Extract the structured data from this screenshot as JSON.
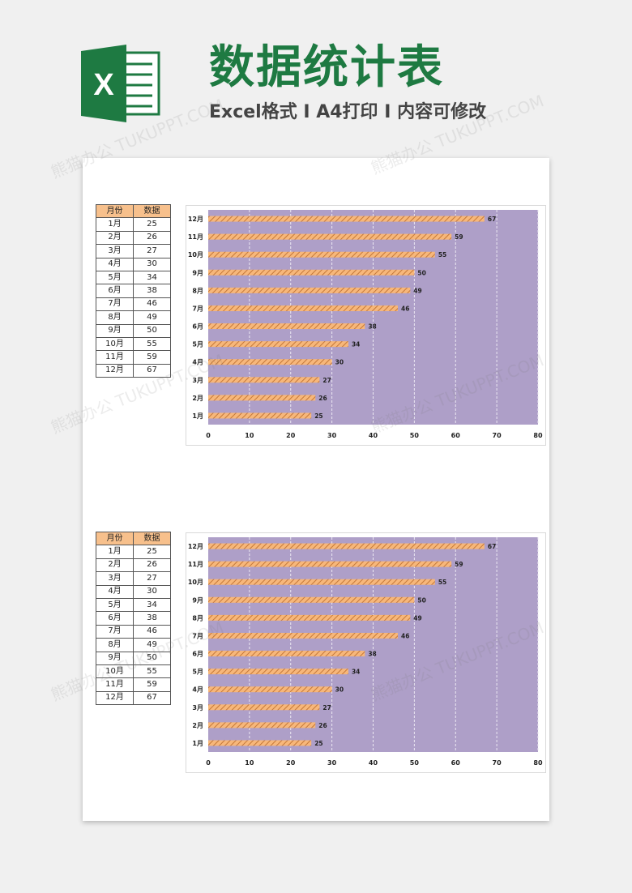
{
  "header": {
    "title": "数据统计表",
    "subtitle": "Excel格式 I A4打印 I 内容可修改",
    "logo_letter": "X"
  },
  "watermark": "熊猫办公 TUKUPPT.COM",
  "colors": {
    "brand_green": "#1e7a42",
    "plot_bg": "#ae9fc8",
    "bar_fill": "#f7b77a",
    "bar_stripe": "#c4783a",
    "header_fill": "#f7c08c"
  },
  "tables": [
    {
      "headers": [
        "月份",
        "数据"
      ],
      "rows": [
        [
          "1月",
          "25"
        ],
        [
          "2月",
          "26"
        ],
        [
          "3月",
          "27"
        ],
        [
          "4月",
          "30"
        ],
        [
          "5月",
          "34"
        ],
        [
          "6月",
          "38"
        ],
        [
          "7月",
          "46"
        ],
        [
          "8月",
          "49"
        ],
        [
          "9月",
          "50"
        ],
        [
          "10月",
          "55"
        ],
        [
          "11月",
          "59"
        ],
        [
          "12月",
          "67"
        ]
      ]
    },
    {
      "headers": [
        "月份",
        "数据"
      ],
      "rows": [
        [
          "1月",
          "25"
        ],
        [
          "2月",
          "26"
        ],
        [
          "3月",
          "27"
        ],
        [
          "4月",
          "30"
        ],
        [
          "5月",
          "34"
        ],
        [
          "6月",
          "38"
        ],
        [
          "7月",
          "46"
        ],
        [
          "8月",
          "49"
        ],
        [
          "9月",
          "50"
        ],
        [
          "10月",
          "55"
        ],
        [
          "11月",
          "59"
        ],
        [
          "12月",
          "67"
        ]
      ]
    }
  ],
  "chart_data": [
    {
      "type": "bar",
      "orientation": "horizontal",
      "categories": [
        "1月",
        "2月",
        "3月",
        "4月",
        "5月",
        "6月",
        "7月",
        "8月",
        "9月",
        "10月",
        "11月",
        "12月"
      ],
      "values": [
        25,
        26,
        27,
        30,
        34,
        38,
        46,
        49,
        50,
        55,
        59,
        67
      ],
      "xticks": [
        0,
        10,
        20,
        30,
        40,
        50,
        60,
        70,
        80
      ],
      "xlim": [
        0,
        80
      ],
      "grid": true,
      "legend": "none",
      "title": "",
      "xlabel": "",
      "ylabel": ""
    },
    {
      "type": "bar",
      "orientation": "horizontal",
      "categories": [
        "1月",
        "2月",
        "3月",
        "4月",
        "5月",
        "6月",
        "7月",
        "8月",
        "9月",
        "10月",
        "11月",
        "12月"
      ],
      "values": [
        25,
        26,
        27,
        30,
        34,
        38,
        46,
        49,
        50,
        55,
        59,
        67
      ],
      "xticks": [
        0,
        10,
        20,
        30,
        40,
        50,
        60,
        70,
        80
      ],
      "xlim": [
        0,
        80
      ],
      "grid": true,
      "legend": "none",
      "title": "",
      "xlabel": "",
      "ylabel": ""
    }
  ]
}
